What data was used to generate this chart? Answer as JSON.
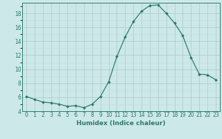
{
  "x": [
    0,
    1,
    2,
    3,
    4,
    5,
    6,
    7,
    8,
    9,
    10,
    11,
    12,
    13,
    14,
    15,
    16,
    17,
    18,
    19,
    20,
    21,
    22,
    23
  ],
  "y": [
    6.1,
    5.7,
    5.3,
    5.2,
    5.0,
    4.7,
    4.8,
    4.5,
    5.0,
    6.1,
    8.2,
    11.8,
    14.6,
    16.8,
    18.3,
    19.1,
    19.2,
    18.0,
    16.6,
    14.8,
    11.7,
    9.3,
    9.2,
    8.5
  ],
  "xlabel": "Humidex (Indice chaleur)",
  "ylabel": "",
  "ylim": [
    4,
    19.5
  ],
  "yticks": [
    4,
    6,
    8,
    10,
    12,
    14,
    16,
    18
  ],
  "bg_color": "#cde8e8",
  "line_color": "#2a7a6a",
  "grid_major_color": "#b0cccc",
  "grid_minor_color": "#c4dcdc",
  "title_fontsize": 7,
  "label_fontsize": 6.5,
  "tick_fontsize": 5.5
}
